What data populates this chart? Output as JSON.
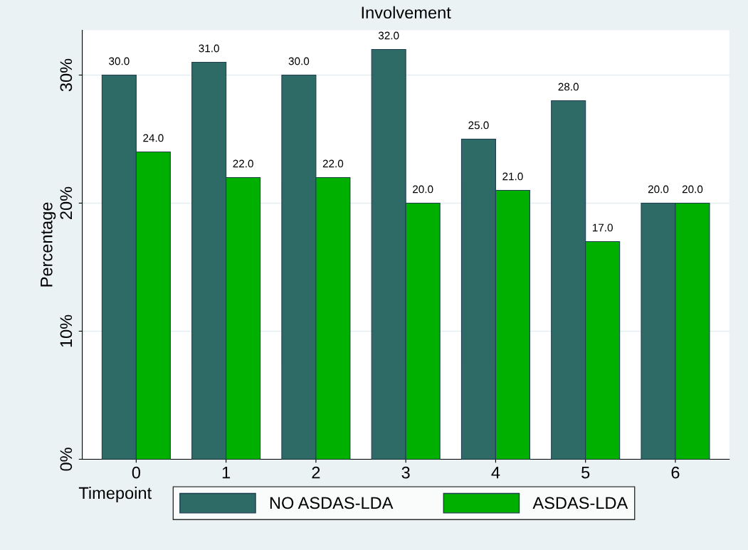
{
  "chart_data": {
    "type": "bar",
    "title": "Involvement",
    "xlabel": "Timepoint",
    "ylabel": "Percentage",
    "categories": [
      "0",
      "1",
      "2",
      "3",
      "4",
      "5",
      "6"
    ],
    "series": [
      {
        "name": "NO ASDAS-LDA",
        "color": "#2f6b66",
        "values": [
          30,
          31,
          30,
          32,
          25,
          28,
          20
        ],
        "value_labels": [
          "30.0",
          "31.0",
          "30.0",
          "32.0",
          "25.0",
          "28.0",
          "20.0"
        ]
      },
      {
        "name": "ASDAS-LDA",
        "color": "#00b000",
        "values": [
          24,
          22,
          22,
          20,
          21,
          17,
          20
        ],
        "value_labels": [
          "24.0",
          "22.0",
          "22.0",
          "20.0",
          "21.0",
          "17.0",
          "20.0"
        ]
      }
    ],
    "ylim": [
      0,
      33.5
    ],
    "yticks": [
      {
        "value": 0,
        "label": "0%"
      },
      {
        "value": 10,
        "label": "10%"
      },
      {
        "value": 20,
        "label": "20%"
      },
      {
        "value": 30,
        "label": "30%"
      }
    ],
    "grid": "y",
    "legend": "bottom"
  }
}
